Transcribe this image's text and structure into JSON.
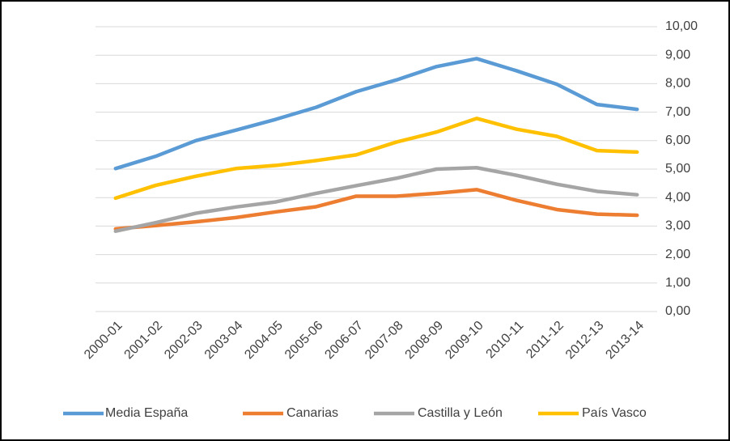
{
  "chart_data": {
    "type": "line",
    "categories": [
      "2000-01",
      "2001-02",
      "2002-03",
      "2003-04",
      "2004-05",
      "2005-06",
      "2006-07",
      "2007-08",
      "2008-09",
      "2009-10",
      "2010-11",
      "2011-12",
      "2012-13",
      "2013-14"
    ],
    "series": [
      {
        "name": "Media España",
        "color": "#5b9bd5",
        "values": [
          5.02,
          5.45,
          6.0,
          6.37,
          6.75,
          7.17,
          7.72,
          8.13,
          8.6,
          8.88,
          8.45,
          7.98,
          7.27,
          7.1
        ]
      },
      {
        "name": "Canarias",
        "color": "#ed7d31",
        "values": [
          2.9,
          3.02,
          3.15,
          3.3,
          3.5,
          3.68,
          4.05,
          4.05,
          4.15,
          4.28,
          3.9,
          3.58,
          3.42,
          3.38
        ]
      },
      {
        "name": "Castilla y León",
        "color": "#a5a5a5",
        "values": [
          2.82,
          3.12,
          3.45,
          3.67,
          3.85,
          4.15,
          4.42,
          4.68,
          5.0,
          5.05,
          4.78,
          4.47,
          4.22,
          4.1
        ]
      },
      {
        "name": "País Vasco",
        "color": "#ffc000",
        "values": [
          3.98,
          4.43,
          4.75,
          5.02,
          5.13,
          5.3,
          5.5,
          5.95,
          6.3,
          6.78,
          6.4,
          6.15,
          5.65,
          5.6
        ]
      }
    ],
    "ylim": [
      0,
      10
    ],
    "yticks": [
      {
        "value": 0,
        "label": "0,00"
      },
      {
        "value": 1,
        "label": "1,00"
      },
      {
        "value": 2,
        "label": "2,00"
      },
      {
        "value": 3,
        "label": "3,00"
      },
      {
        "value": 4,
        "label": "4,00"
      },
      {
        "value": 5,
        "label": "5,00"
      },
      {
        "value": 6,
        "label": "6,00"
      },
      {
        "value": 7,
        "label": "7,00"
      },
      {
        "value": 8,
        "label": "8,00"
      },
      {
        "value": 9,
        "label": "9,00"
      },
      {
        "value": 10,
        "label": "10,00"
      }
    ],
    "grid": true,
    "legend": "bottom"
  }
}
